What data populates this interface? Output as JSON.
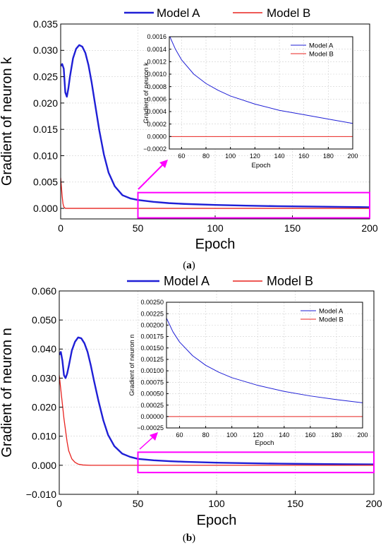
{
  "legend": {
    "series_a": "Model A",
    "series_b": "Model B"
  },
  "panels": [
    {
      "label": "(",
      "letter": "a",
      "close": ")"
    },
    {
      "label": "(",
      "letter": "b",
      "close": ")"
    }
  ],
  "highlight_color": "#ff00ff",
  "series_colors": {
    "Model A": "#1f1fd6",
    "Model B": "#e8231f"
  },
  "chart_data": [
    {
      "id": "a-main",
      "type": "line",
      "xlabel": "Epoch",
      "ylabel": "Gradient of neuron k",
      "xlim": [
        0,
        200
      ],
      "ylim": [
        -0.002,
        0.035
      ],
      "xticks": [
        0,
        50,
        100,
        150,
        200
      ],
      "yticks": [
        0.0,
        0.005,
        0.01,
        0.015,
        0.02,
        0.025,
        0.03,
        0.035
      ],
      "ytick_decimals": 3,
      "grid": true,
      "legend_position": "top",
      "series": [
        {
          "name": "Model A",
          "points": [
            [
              0,
              0.027
            ],
            [
              1,
              0.0274
            ],
            [
              2,
              0.0265
            ],
            [
              3,
              0.022
            ],
            [
              4,
              0.0212
            ],
            [
              5,
              0.0228
            ],
            [
              6,
              0.025
            ],
            [
              8,
              0.0285
            ],
            [
              10,
              0.0303
            ],
            [
              12,
              0.031
            ],
            [
              14,
              0.0307
            ],
            [
              16,
              0.0295
            ],
            [
              18,
              0.0272
            ],
            [
              20,
              0.024
            ],
            [
              22,
              0.0203
            ],
            [
              25,
              0.0148
            ],
            [
              28,
              0.0102
            ],
            [
              31,
              0.0068
            ],
            [
              35,
              0.0042
            ],
            [
              40,
              0.0025
            ],
            [
              45,
              0.0019
            ],
            [
              50,
              0.0016
            ],
            [
              60,
              0.00125
            ],
            [
              70,
              0.001
            ],
            [
              80,
              0.00085
            ],
            [
              100,
              0.00065
            ],
            [
              120,
              0.00052
            ],
            [
              140,
              0.00042
            ],
            [
              160,
              0.00035
            ],
            [
              180,
              0.00029
            ],
            [
              200,
              0.00022
            ]
          ]
        },
        {
          "name": "Model B",
          "points": [
            [
              0,
              0.0058
            ],
            [
              0.5,
              0.004
            ],
            [
              1,
              0.0022
            ],
            [
              1.5,
              0.0009
            ],
            [
              2,
              0.0003
            ],
            [
              3,
              0.0
            ],
            [
              200,
              0.0
            ]
          ]
        }
      ],
      "annotation_box": {
        "x": [
          50,
          200
        ],
        "y": [
          -0.0018,
          0.003
        ]
      }
    },
    {
      "id": "a-inset",
      "type": "line",
      "xlabel": "Epoch",
      "ylabel": "Gradient of neuron k",
      "xlim": [
        50,
        200
      ],
      "ylim": [
        -0.0002,
        0.0016
      ],
      "xticks": [
        60,
        80,
        100,
        120,
        140,
        160,
        180,
        200
      ],
      "yticks": [
        -0.0002,
        0.0,
        0.0002,
        0.0004,
        0.0006,
        0.0008,
        0.001,
        0.0012,
        0.0014,
        0.0016
      ],
      "ytick_decimals": 4,
      "grid": true,
      "legend_position": "top-right",
      "series": [
        {
          "name": "Model A",
          "points": [
            [
              50,
              0.00162
            ],
            [
              55,
              0.0014
            ],
            [
              60,
              0.00123
            ],
            [
              70,
              0.001
            ],
            [
              80,
              0.00085
            ],
            [
              90,
              0.00074
            ],
            [
              100,
              0.00065
            ],
            [
              120,
              0.00052
            ],
            [
              140,
              0.00042
            ],
            [
              160,
              0.00035
            ],
            [
              180,
              0.00028
            ],
            [
              200,
              0.00021
            ]
          ]
        },
        {
          "name": "Model B",
          "points": [
            [
              50,
              0.0
            ],
            [
              200,
              0.0
            ]
          ]
        }
      ]
    },
    {
      "id": "b-main",
      "type": "line",
      "xlabel": "Epoch",
      "ylabel": "Gradient of neuron n",
      "xlim": [
        0,
        200
      ],
      "ylim": [
        -0.01,
        0.06
      ],
      "xticks": [
        0,
        50,
        100,
        150,
        200
      ],
      "yticks": [
        -0.01,
        0.0,
        0.01,
        0.02,
        0.03,
        0.04,
        0.05,
        0.06
      ],
      "ytick_decimals": 3,
      "grid": true,
      "legend_position": "top",
      "series": [
        {
          "name": "Model A",
          "points": [
            [
              0,
              0.038
            ],
            [
              1,
              0.039
            ],
            [
              2,
              0.036
            ],
            [
              3,
              0.031
            ],
            [
              4,
              0.03
            ],
            [
              5,
              0.0315
            ],
            [
              6,
              0.034
            ],
            [
              8,
              0.0395
            ],
            [
              10,
              0.0425
            ],
            [
              12,
              0.044
            ],
            [
              14,
              0.0437
            ],
            [
              16,
              0.042
            ],
            [
              18,
              0.039
            ],
            [
              20,
              0.0345
            ],
            [
              22,
              0.0293
            ],
            [
              25,
              0.022
            ],
            [
              28,
              0.0155
            ],
            [
              31,
              0.0105
            ],
            [
              35,
              0.0066
            ],
            [
              40,
              0.004
            ],
            [
              45,
              0.0029
            ],
            [
              50,
              0.0022
            ],
            [
              60,
              0.0017
            ],
            [
              70,
              0.0014
            ],
            [
              80,
              0.0012
            ],
            [
              100,
              0.0009
            ],
            [
              120,
              0.0007
            ],
            [
              140,
              0.00055
            ],
            [
              160,
              0.00045
            ],
            [
              180,
              0.00037
            ],
            [
              200,
              0.0003
            ]
          ]
        },
        {
          "name": "Model B",
          "points": [
            [
              0,
              0.031
            ],
            [
              1,
              0.026
            ],
            [
              2,
              0.021
            ],
            [
              3,
              0.016
            ],
            [
              4,
              0.012
            ],
            [
              5,
              0.008
            ],
            [
              6,
              0.005
            ],
            [
              8,
              0.0022
            ],
            [
              10,
              0.001
            ],
            [
              12,
              0.0004
            ],
            [
              15,
              0.0001
            ],
            [
              20,
              0.0
            ],
            [
              200,
              0.0
            ]
          ]
        }
      ],
      "annotation_box": {
        "x": [
          50,
          200
        ],
        "y": [
          -0.0025,
          0.0045
        ]
      }
    },
    {
      "id": "b-inset",
      "type": "line",
      "xlabel": "Epoch",
      "ylabel": "Gradient of neuron n",
      "xlim": [
        50,
        200
      ],
      "ylim": [
        -0.00025,
        0.0025
      ],
      "xticks": [
        60,
        80,
        100,
        120,
        140,
        160,
        180,
        200
      ],
      "yticks": [
        -0.00025,
        0.0,
        0.00025,
        0.0005,
        0.00075,
        0.001,
        0.00125,
        0.0015,
        0.00175,
        0.002,
        0.00225,
        0.0025
      ],
      "ytick_decimals": 5,
      "grid": true,
      "legend_position": "top-right",
      "series": [
        {
          "name": "Model A",
          "points": [
            [
              50,
              0.00215
            ],
            [
              55,
              0.00185
            ],
            [
              60,
              0.00163
            ],
            [
              70,
              0.00133
            ],
            [
              80,
              0.00112
            ],
            [
              90,
              0.00097
            ],
            [
              100,
              0.00085
            ],
            [
              120,
              0.00068
            ],
            [
              140,
              0.00055
            ],
            [
              160,
              0.00045
            ],
            [
              180,
              0.00037
            ],
            [
              200,
              0.0003
            ]
          ]
        },
        {
          "name": "Model B",
          "points": [
            [
              50,
              0.0
            ],
            [
              200,
              0.0
            ]
          ]
        }
      ]
    }
  ]
}
